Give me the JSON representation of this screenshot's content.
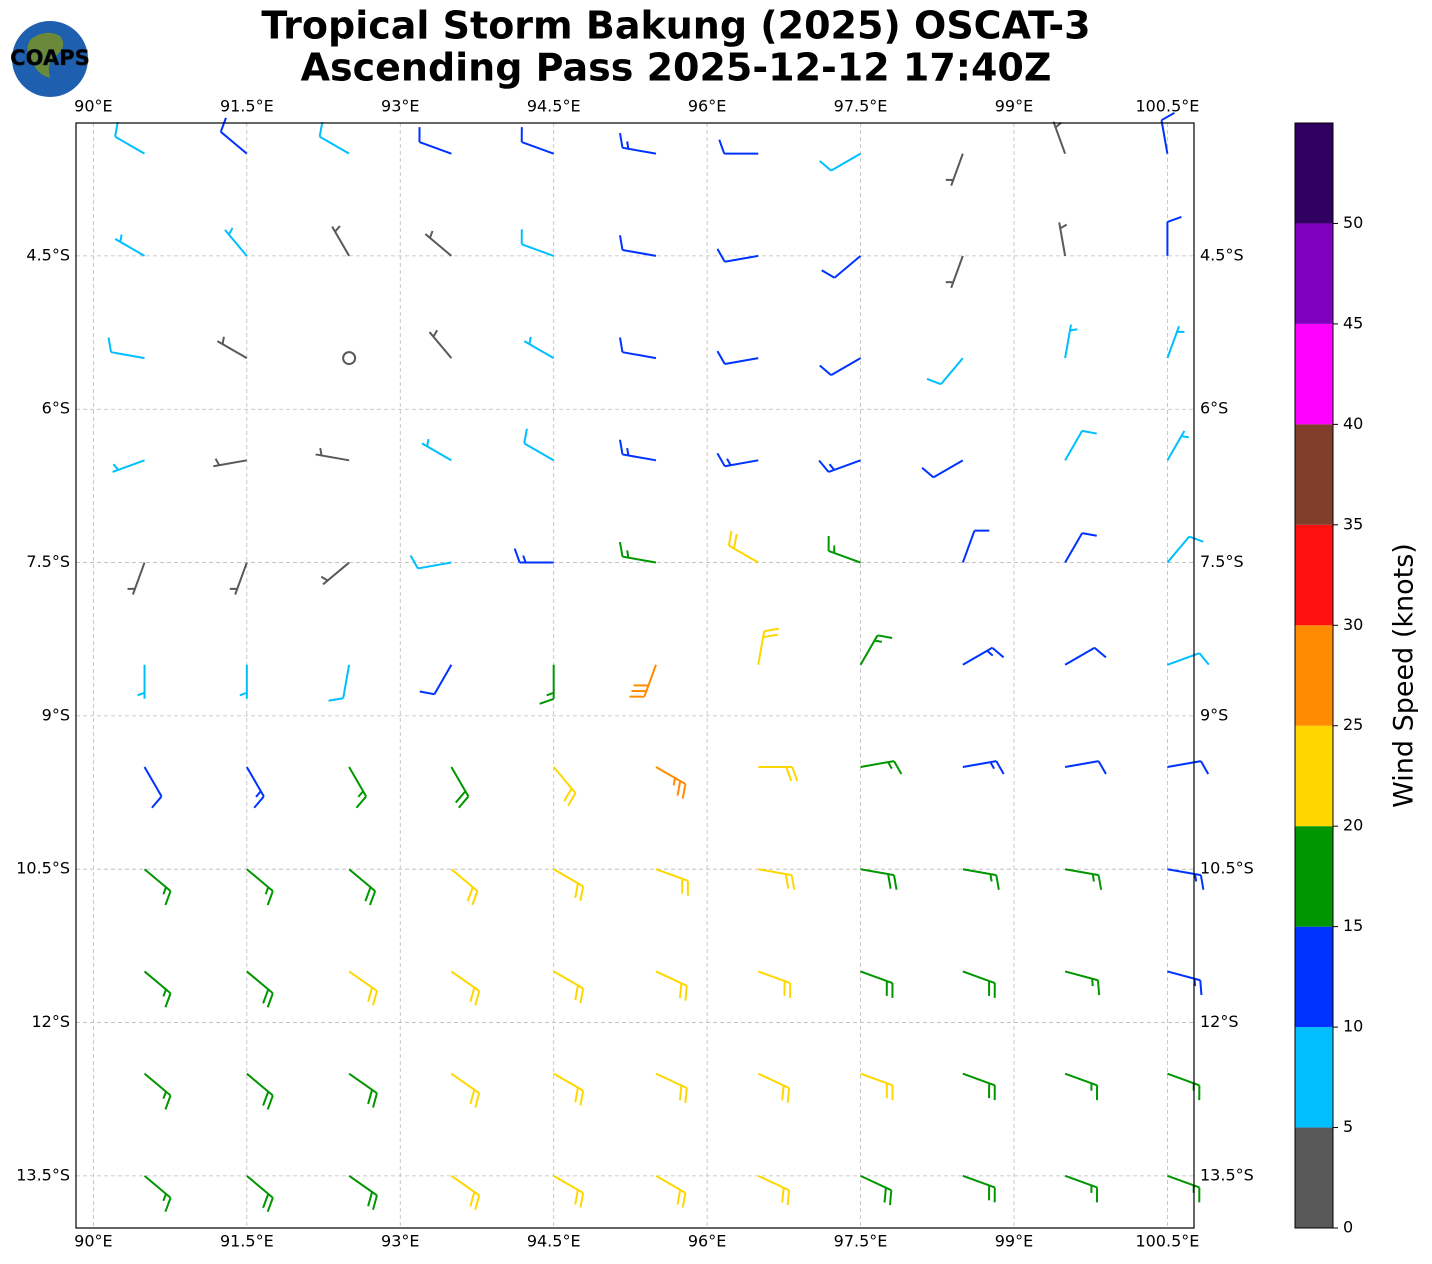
{
  "title_lines": [
    "Tropical Storm Bakung (2025) OSCAT-3",
    "Ascending Pass 2025-12-12 17:40Z"
  ],
  "logo_text": "COAPS",
  "map": {
    "xlim": [
      89.83,
      100.76
    ],
    "ylim": [
      -14.01,
      -3.2
    ],
    "xticks": [
      {
        "value": 90,
        "label": "90°E"
      },
      {
        "value": 91.5,
        "label": "91.5°E"
      },
      {
        "value": 93,
        "label": "93°E"
      },
      {
        "value": 94.5,
        "label": "94.5°E"
      },
      {
        "value": 96,
        "label": "96°E"
      },
      {
        "value": 97.5,
        "label": "97.5°E"
      },
      {
        "value": 99,
        "label": "99°E"
      },
      {
        "value": 100.5,
        "label": "100.5°E"
      }
    ],
    "yticks": [
      {
        "value": -4.5,
        "label": "4.5°S"
      },
      {
        "value": -6,
        "label": "6°S"
      },
      {
        "value": -7.5,
        "label": "7.5°S"
      },
      {
        "value": -9,
        "label": "9°S"
      },
      {
        "value": -10.5,
        "label": "10.5°S"
      },
      {
        "value": -12,
        "label": "12°S"
      },
      {
        "value": -13.5,
        "label": "13.5°S"
      }
    ],
    "grid": true,
    "barbs": {
      "lon": [
        90.5,
        91.5,
        92.5,
        93.5,
        94.5,
        95.5,
        96.5,
        97.5,
        98.5,
        99.5,
        100.5
      ],
      "lat": [
        -3.5,
        -4.5,
        -5.5,
        -6.5,
        -7.5,
        -8.5,
        -9.5,
        -10.5,
        -11.5,
        -12.5,
        -13.5
      ],
      "speed": [
        [
          8,
          10,
          9,
          10,
          12,
          13,
          12,
          8,
          4,
          3,
          12
        ],
        [
          7,
          6,
          3,
          4,
          9,
          11,
          12,
          10,
          4,
          4,
          10
        ],
        [
          8,
          4,
          2,
          3,
          7,
          10,
          12,
          11,
          8,
          7,
          6
        ],
        [
          7,
          3,
          3,
          5,
          9,
          13,
          14,
          13,
          11,
          9,
          5
        ],
        [
          4,
          3,
          4,
          8,
          13,
          17,
          20,
          15,
          12,
          10,
          8
        ],
        [
          7,
          6,
          8,
          12,
          17,
          28,
          22,
          17,
          13,
          11,
          9
        ],
        [
          12,
          14,
          16,
          18,
          22,
          27,
          22,
          17,
          14,
          12,
          10
        ],
        [
          16,
          17,
          18,
          20,
          22,
          21,
          20,
          18,
          16,
          15,
          13
        ],
        [
          17,
          18,
          20,
          21,
          22,
          21,
          20,
          19,
          18,
          16,
          14
        ],
        [
          17,
          18,
          19,
          21,
          22,
          21,
          20,
          20,
          19,
          17,
          15
        ],
        [
          17,
          18,
          19,
          20,
          21,
          20,
          20,
          19,
          18,
          17,
          16
        ]
      ],
      "direction": [
        [
          300,
          310,
          300,
          290,
          290,
          280,
          270,
          240,
          200,
          340,
          350
        ],
        [
          300,
          320,
          330,
          310,
          290,
          280,
          260,
          230,
          200,
          350,
          0
        ],
        [
          280,
          300,
          330,
          320,
          300,
          280,
          260,
          240,
          220,
          10,
          20
        ],
        [
          250,
          260,
          280,
          300,
          300,
          280,
          260,
          250,
          240,
          30,
          30
        ],
        [
          200,
          200,
          230,
          260,
          270,
          280,
          300,
          290,
          20,
          30,
          40
        ],
        [
          180,
          180,
          190,
          210,
          180,
          200,
          10,
          30,
          60,
          60,
          70
        ],
        [
          150,
          150,
          150,
          150,
          140,
          120,
          90,
          80,
          80,
          80,
          80
        ],
        [
          130,
          130,
          130,
          130,
          120,
          110,
          100,
          100,
          100,
          100,
          100
        ],
        [
          130,
          130,
          125,
          125,
          120,
          115,
          110,
          110,
          110,
          105,
          105
        ],
        [
          130,
          130,
          125,
          125,
          120,
          115,
          115,
          110,
          110,
          110,
          110
        ],
        [
          130,
          130,
          125,
          125,
          120,
          120,
          115,
          115,
          110,
          110,
          110
        ]
      ]
    }
  },
  "colorbar": {
    "label": "Wind Speed (knots)",
    "bounds": [
      0,
      5,
      10,
      15,
      20,
      25,
      30,
      35,
      40,
      45,
      50,
      55
    ],
    "colors": [
      "#595959",
      "#00bfff",
      "#0033ff",
      "#009600",
      "#ffd700",
      "#ff8c00",
      "#ff1010",
      "#7f3f2a",
      "#ff00ff",
      "#8000c0",
      "#300060"
    ],
    "ticks": [
      0,
      5,
      10,
      15,
      20,
      25,
      30,
      35,
      40,
      45,
      50
    ]
  }
}
